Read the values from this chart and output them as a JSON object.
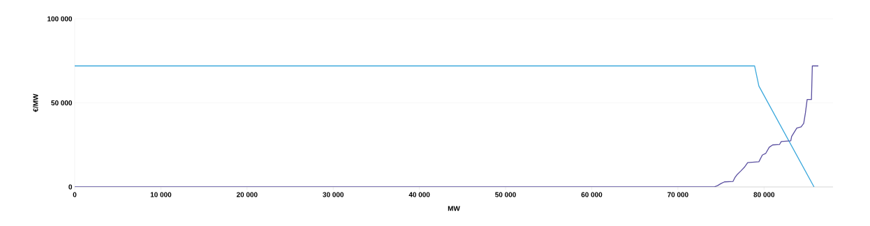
{
  "chart_data": {
    "type": "line",
    "xlabel": "MW",
    "ylabel": "€/MW",
    "xlim": [
      0,
      88000
    ],
    "ylim": [
      0,
      100000
    ],
    "xticks": [
      0,
      {
        "value": 10000,
        "label": "10 000"
      },
      {
        "value": 20000,
        "label": "20 000"
      },
      {
        "value": 30000,
        "label": "30 000"
      },
      {
        "value": 40000,
        "label": "40 000"
      },
      {
        "value": 50000,
        "label": "50 000"
      },
      {
        "value": 60000,
        "label": "60 000"
      },
      {
        "value": 70000,
        "label": "70 000"
      },
      {
        "value": 80000,
        "label": "80 000"
      }
    ],
    "yticks": [
      0,
      {
        "value": 50000,
        "label": "50 000"
      },
      {
        "value": 100000,
        "label": "100 000"
      }
    ],
    "grid": "y",
    "marker": "none",
    "line_style": "solid",
    "series": [
      {
        "color": "#3ba8dc",
        "x": [
          0,
          78900,
          79400,
          85800
        ],
        "values": [
          72000,
          72000,
          60000,
          0
        ]
      },
      {
        "color": "#5a4fa0",
        "x": [
          0,
          74200,
          74600,
          75000,
          75400,
          76400,
          76600,
          76900,
          77300,
          77700,
          78100,
          79400,
          79800,
          80200,
          80600,
          81000,
          81800,
          82000,
          83100,
          83200,
          83800,
          84300,
          84600,
          84800,
          85000,
          85500,
          85600,
          86300
        ],
        "values": [
          0,
          0,
          800,
          2000,
          3000,
          3300,
          5400,
          7500,
          9500,
          11600,
          14500,
          15000,
          19000,
          20000,
          23600,
          25000,
          25300,
          27000,
          27400,
          30000,
          35000,
          35700,
          37800,
          44000,
          52000,
          52000,
          72000,
          72000
        ]
      }
    ]
  }
}
